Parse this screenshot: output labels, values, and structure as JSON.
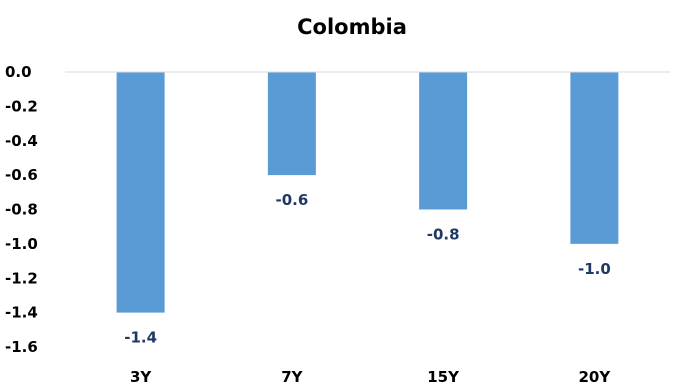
{
  "chart_data": {
    "type": "bar",
    "title": "Colombia",
    "xlabel": "",
    "ylabel": "",
    "categories": [
      "3Y",
      "7Y",
      "15Y",
      "20Y"
    ],
    "values": [
      -1.4,
      -0.6,
      -0.8,
      -1.0
    ],
    "data_labels": [
      "-1.4",
      "-0.6",
      "-0.8",
      "-1.0"
    ],
    "ylim": [
      -1.6,
      0.0
    ],
    "yticks": [
      0.0,
      -0.2,
      -0.4,
      -0.6,
      -0.8,
      -1.0,
      -1.2,
      -1.4,
      -1.6
    ],
    "ytick_labels": [
      "0.0",
      "-0.2",
      "-0.4",
      "-0.6",
      "-0.8",
      "-1.0",
      "-1.2",
      "-1.4",
      "-1.6"
    ],
    "grid": false,
    "legend": "none",
    "bar_color": "#5b9bd5",
    "data_label_color": "#1f3864",
    "baseline_color": "#d9d9d9"
  }
}
